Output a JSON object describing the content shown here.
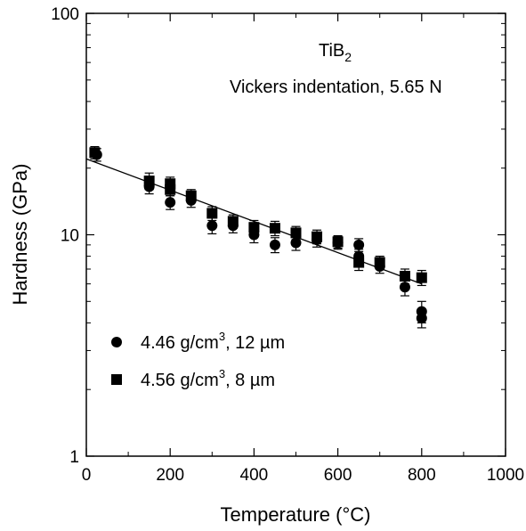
{
  "chart_data": {
    "type": "scatter",
    "title": "",
    "annotation": {
      "material": "TiB",
      "material_subscript": "2",
      "method": "Vickers indentation, 5.65 N"
    },
    "xlabel": "Temperature (°C)",
    "ylabel": "Hardness (GPa)",
    "xlim": [
      0,
      1000
    ],
    "ylim": [
      1,
      100
    ],
    "yscale": "log",
    "grid": false,
    "legend_position": "bottom-left",
    "xticks": [
      0,
      200,
      400,
      600,
      800,
      1000
    ],
    "xtick_labels": [
      "0",
      "200",
      "400",
      "600",
      "800",
      "1000"
    ],
    "yticks": [
      1,
      10,
      100
    ],
    "ytick_labels": [
      "1",
      "10",
      "100"
    ],
    "series": [
      {
        "name": "4.46 g/cm3, 12 µm",
        "legend_label": {
          "before": "4.46 g/cm",
          "sup": "3",
          "after": ", 12 µm"
        },
        "marker": "circle",
        "points": [
          {
            "x": 25,
            "y": 23.0,
            "err": 1.5
          },
          {
            "x": 150,
            "y": 16.5,
            "err": 1.2
          },
          {
            "x": 200,
            "y": 14.0,
            "err": 1.0
          },
          {
            "x": 250,
            "y": 14.3,
            "err": 1.0
          },
          {
            "x": 300,
            "y": 11.0,
            "err": 0.9
          },
          {
            "x": 350,
            "y": 11.0,
            "err": 0.8
          },
          {
            "x": 400,
            "y": 10.0,
            "err": 0.8
          },
          {
            "x": 450,
            "y": 9.0,
            "err": 0.7
          },
          {
            "x": 500,
            "y": 9.2,
            "err": 0.7
          },
          {
            "x": 550,
            "y": 9.5,
            "err": 0.7
          },
          {
            "x": 600,
            "y": 9.2,
            "err": 0.6
          },
          {
            "x": 650,
            "y": 9.0,
            "err": 0.6
          },
          {
            "x": 650,
            "y": 8.0,
            "err": 0.6
          },
          {
            "x": 700,
            "y": 7.2,
            "err": 0.5
          },
          {
            "x": 760,
            "y": 5.8,
            "err": 0.5
          },
          {
            "x": 800,
            "y": 4.5,
            "err": 0.5
          },
          {
            "x": 800,
            "y": 4.2,
            "err": 0.4
          }
        ]
      },
      {
        "name": "4.56 g/cm3, 8 µm",
        "legend_label": {
          "before": "4.56 g/cm",
          "sup": "3",
          "after": ", 8 µm"
        },
        "marker": "square",
        "points": [
          {
            "x": 20,
            "y": 23.5,
            "err": 1.5
          },
          {
            "x": 150,
            "y": 17.5,
            "err": 1.5
          },
          {
            "x": 200,
            "y": 17.0,
            "err": 1.2
          },
          {
            "x": 200,
            "y": 16.0,
            "err": 1.0
          },
          {
            "x": 250,
            "y": 15.0,
            "err": 1.0
          },
          {
            "x": 300,
            "y": 12.5,
            "err": 0.9
          },
          {
            "x": 350,
            "y": 11.5,
            "err": 0.8
          },
          {
            "x": 400,
            "y": 10.8,
            "err": 0.8
          },
          {
            "x": 450,
            "y": 10.7,
            "err": 0.8
          },
          {
            "x": 500,
            "y": 10.2,
            "err": 0.7
          },
          {
            "x": 550,
            "y": 9.8,
            "err": 0.7
          },
          {
            "x": 600,
            "y": 9.3,
            "err": 0.6
          },
          {
            "x": 650,
            "y": 7.5,
            "err": 0.6
          },
          {
            "x": 700,
            "y": 7.5,
            "err": 0.5
          },
          {
            "x": 760,
            "y": 6.5,
            "err": 0.5
          },
          {
            "x": 800,
            "y": 6.4,
            "err": 0.5
          }
        ]
      }
    ],
    "fit_line": {
      "x": [
        0,
        800
      ],
      "y": [
        22.0,
        6.0
      ]
    }
  }
}
